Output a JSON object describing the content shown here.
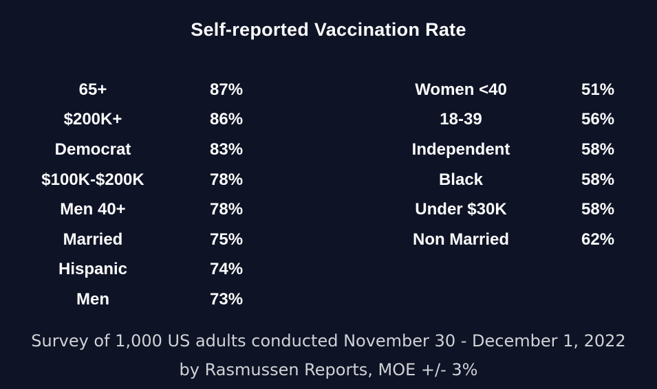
{
  "page": {
    "background_color": "#0e1426",
    "text_color": "#fbfbfc",
    "footer_text_color": "#d1d2d7"
  },
  "title": "Self-reported Vaccination Rate",
  "chart_data": {
    "type": "table",
    "title": "Self-reported Vaccination Rate",
    "value_unit": "percent",
    "layout": "two column groups of label/value pairs on dark navy background",
    "left_rows": [
      {
        "label": "65+",
        "value": 87,
        "display": "87%"
      },
      {
        "label": "$200K+",
        "value": 86,
        "display": "86%"
      },
      {
        "label": "Democrat",
        "value": 83,
        "display": "83%"
      },
      {
        "label": "$100K-$200K",
        "value": 78,
        "display": "78%"
      },
      {
        "label": "Men 40+",
        "value": 78,
        "display": "78%"
      },
      {
        "label": "Married",
        "value": 75,
        "display": "75%"
      },
      {
        "label": "Hispanic",
        "value": 74,
        "display": "74%"
      },
      {
        "label": "Men",
        "value": 73,
        "display": "73%"
      }
    ],
    "right_rows": [
      {
        "label": "Women <40",
        "value": 51,
        "display": "51%"
      },
      {
        "label": "18-39",
        "value": 56,
        "display": "56%"
      },
      {
        "label": "Independent",
        "value": 58,
        "display": "58%"
      },
      {
        "label": "Black",
        "value": 58,
        "display": "58%"
      },
      {
        "label": "Under $30K",
        "value": 58,
        "display": "58%"
      },
      {
        "label": "Non Married",
        "value": 62,
        "display": "62%"
      }
    ]
  },
  "footer": {
    "line1": "Survey of 1,000 US adults conducted November 30 - December 1, 2022",
    "line2": "by Rasmussen Reports, MOE +/- 3%"
  }
}
